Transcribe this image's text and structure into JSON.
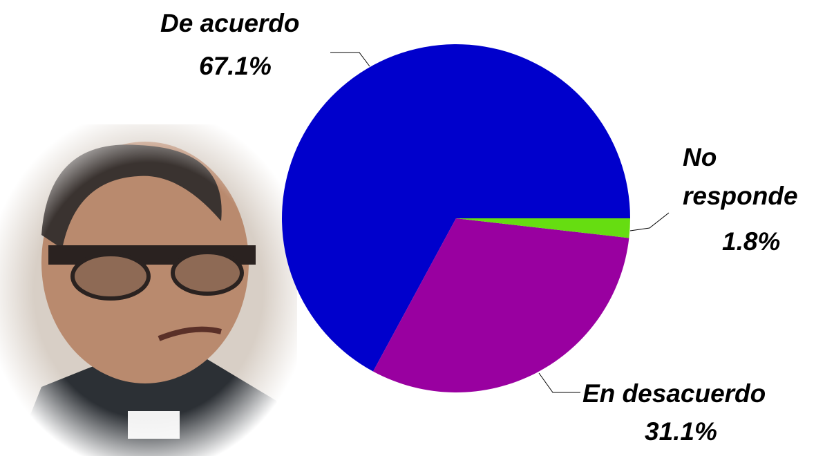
{
  "chart_data": {
    "type": "pie",
    "categories": [
      "De acuerdo",
      "En desacuerdo",
      "No responde"
    ],
    "values": [
      67.1,
      31.1,
      1.8
    ],
    "value_labels": [
      "67.1%",
      "31.1%",
      "1.8%"
    ],
    "colors": [
      "#0000cc",
      "#9900a0",
      "#66dd11"
    ]
  }
}
